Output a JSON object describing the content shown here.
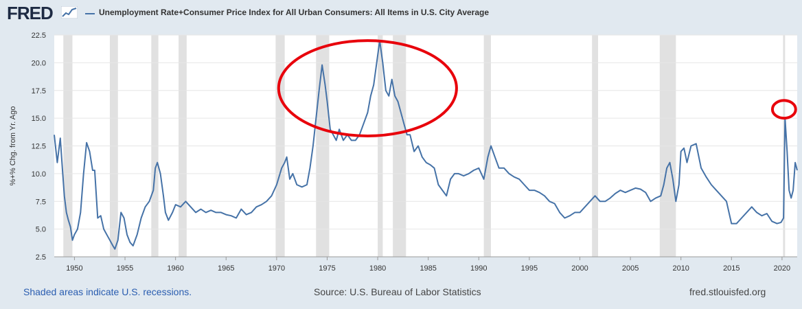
{
  "header": {
    "logo_text": "FRED",
    "legend_label": "Unemployment Rate+Consumer Price Index for All Urban Consumers: All Items in U.S. City Average"
  },
  "footer": {
    "recession_note": "Shaded areas indicate U.S. recessions.",
    "source": "Source: U.S. Bureau of Labor Statistics",
    "url": "fred.stlouisfed.org"
  },
  "colors": {
    "series": "#4572a7",
    "recession": "#e1e1e1",
    "annotation": "#e8000b",
    "background": "#e1e9f0",
    "plot_bg": "#ffffff",
    "grid": "#e6e6e6"
  },
  "chart_data": {
    "type": "line",
    "title": "",
    "xlabel": "",
    "ylabel": "%+% Chg. from Yr. Ago",
    "ylim": [
      2.5,
      22.5
    ],
    "xlim": [
      1948.0,
      2021.5
    ],
    "grid": true,
    "y_ticks": [
      2.5,
      5.0,
      7.5,
      10.0,
      12.5,
      15.0,
      17.5,
      20.0,
      22.5
    ],
    "y_tick_labels": [
      "2.5",
      "5.0",
      "7.5",
      "10.0",
      "12.5",
      "15.0",
      "17.5",
      "20.0",
      "22.5"
    ],
    "x_ticks": [
      1950,
      1955,
      1960,
      1965,
      1970,
      1975,
      1980,
      1985,
      1990,
      1995,
      2000,
      2005,
      2010,
      2015,
      2020
    ],
    "x_tick_labels": [
      "1950",
      "1955",
      "1960",
      "1965",
      "1970",
      "1975",
      "1980",
      "1985",
      "1990",
      "1995",
      "2000",
      "2005",
      "2010",
      "2015",
      "2020"
    ],
    "recessions": [
      [
        1948.9,
        1949.8
      ],
      [
        1953.5,
        1954.3
      ],
      [
        1957.6,
        1958.3
      ],
      [
        1960.3,
        1961.1
      ],
      [
        1969.9,
        1970.8
      ],
      [
        1973.9,
        1975.2
      ],
      [
        1980.0,
        1980.5
      ],
      [
        1981.5,
        1982.8
      ],
      [
        1990.5,
        1991.2
      ],
      [
        2001.2,
        2001.8
      ],
      [
        2007.9,
        2009.5
      ],
      [
        2020.1,
        2020.3
      ]
    ],
    "series": [
      {
        "x": [
          1948.0,
          1948.3,
          1948.6,
          1948.8,
          1949.0,
          1949.2,
          1949.4,
          1949.6,
          1949.8,
          1950.0,
          1950.3,
          1950.6,
          1950.9,
          1951.2,
          1951.5,
          1951.8,
          1952.0,
          1952.3,
          1952.6,
          1952.9,
          1953.2,
          1953.5,
          1953.8,
          1954.0,
          1954.3,
          1954.6,
          1954.9,
          1955.2,
          1955.5,
          1955.8,
          1956.2,
          1956.6,
          1957.0,
          1957.4,
          1957.8,
          1958.0,
          1958.2,
          1958.5,
          1958.8,
          1959.0,
          1959.3,
          1959.7,
          1960.0,
          1960.5,
          1961.0,
          1961.5,
          1962.0,
          1962.5,
          1963.0,
          1963.5,
          1964.0,
          1964.5,
          1965.0,
          1965.5,
          1966.0,
          1966.5,
          1967.0,
          1967.5,
          1968.0,
          1968.5,
          1969.0,
          1969.5,
          1970.0,
          1970.5,
          1970.8,
          1971.0,
          1971.3,
          1971.6,
          1972.0,
          1972.5,
          1973.0,
          1973.3,
          1973.6,
          1973.9,
          1974.2,
          1974.5,
          1974.8,
          1975.0,
          1975.3,
          1975.6,
          1975.9,
          1976.2,
          1976.6,
          1977.0,
          1977.4,
          1977.8,
          1978.2,
          1978.6,
          1979.0,
          1979.3,
          1979.6,
          1979.9,
          1980.2,
          1980.5,
          1980.8,
          1981.1,
          1981.4,
          1981.7,
          1982.0,
          1982.3,
          1982.6,
          1982.9,
          1983.2,
          1983.6,
          1984.0,
          1984.4,
          1984.8,
          1985.2,
          1985.6,
          1986.0,
          1986.4,
          1986.8,
          1987.2,
          1987.6,
          1988.0,
          1988.5,
          1989.0,
          1989.5,
          1990.0,
          1990.5,
          1990.9,
          1991.2,
          1991.6,
          1992.0,
          1992.5,
          1993.0,
          1993.5,
          1994.0,
          1994.5,
          1995.0,
          1995.5,
          1996.0,
          1996.5,
          1997.0,
          1997.5,
          1998.0,
          1998.5,
          1999.0,
          1999.5,
          2000.0,
          2000.5,
          2001.0,
          2001.5,
          2002.0,
          2002.5,
          2003.0,
          2003.5,
          2004.0,
          2004.5,
          2005.0,
          2005.5,
          2006.0,
          2006.5,
          2007.0,
          2007.5,
          2008.0,
          2008.3,
          2008.6,
          2008.9,
          2009.2,
          2009.5,
          2009.8,
          2010.0,
          2010.3,
          2010.6,
          2011.0,
          2011.5,
          2012.0,
          2012.5,
          2013.0,
          2013.5,
          2014.0,
          2014.5,
          2015.0,
          2015.5,
          2016.0,
          2016.5,
          2017.0,
          2017.5,
          2018.0,
          2018.5,
          2019.0,
          2019.5,
          2019.9,
          2020.15,
          2020.3,
          2020.5,
          2020.7,
          2020.9,
          2021.1,
          2021.3,
          2021.5
        ],
        "values": [
          13.5,
          11.0,
          13.2,
          10.5,
          8.0,
          6.5,
          5.8,
          5.2,
          4.0,
          4.5,
          5.0,
          6.5,
          10.0,
          12.8,
          12.0,
          10.3,
          10.3,
          6.0,
          6.2,
          5.0,
          4.5,
          4.0,
          3.5,
          3.2,
          4.0,
          6.5,
          6.0,
          4.5,
          3.8,
          3.5,
          4.5,
          6.0,
          7.0,
          7.5,
          8.5,
          10.5,
          11.0,
          10.0,
          8.0,
          6.5,
          5.8,
          6.5,
          7.2,
          7.0,
          7.5,
          7.0,
          6.5,
          6.8,
          6.5,
          6.7,
          6.5,
          6.5,
          6.3,
          6.2,
          6.0,
          6.8,
          6.3,
          6.5,
          7.0,
          7.2,
          7.5,
          8.0,
          9.0,
          10.5,
          11.0,
          11.5,
          9.5,
          10.0,
          9.0,
          8.8,
          9.0,
          10.5,
          12.5,
          15.0,
          17.5,
          19.8,
          18.0,
          16.5,
          14.0,
          13.5,
          13.0,
          14.0,
          13.0,
          13.5,
          13.0,
          13.0,
          13.5,
          14.5,
          15.5,
          17.0,
          18.0,
          20.0,
          22.0,
          20.0,
          17.5,
          17.0,
          18.5,
          17.0,
          16.5,
          15.5,
          14.5,
          13.5,
          13.5,
          12.0,
          12.5,
          11.5,
          11.0,
          10.8,
          10.5,
          9.0,
          8.5,
          8.0,
          9.5,
          10.0,
          10.0,
          9.8,
          10.0,
          10.3,
          10.5,
          9.5,
          11.5,
          12.5,
          11.5,
          10.5,
          10.5,
          10.0,
          9.7,
          9.5,
          9.0,
          8.5,
          8.5,
          8.3,
          8.0,
          7.5,
          7.3,
          6.5,
          6.0,
          6.2,
          6.5,
          6.5,
          7.0,
          7.5,
          8.0,
          7.5,
          7.5,
          7.8,
          8.2,
          8.5,
          8.3,
          8.5,
          8.7,
          8.6,
          8.3,
          7.5,
          7.8,
          8.0,
          9.0,
          10.5,
          11.0,
          9.5,
          7.5,
          9.0,
          12.0,
          12.3,
          11.0,
          12.5,
          12.7,
          10.5,
          9.7,
          9.0,
          8.5,
          8.0,
          7.5,
          5.5,
          5.5,
          6.0,
          6.5,
          7.0,
          6.5,
          6.2,
          6.4,
          5.7,
          5.5,
          5.6,
          6.0,
          15.0,
          12.0,
          8.5,
          7.8,
          8.5,
          11.0,
          10.3
        ]
      }
    ],
    "annotations": [
      {
        "shape": "ellipse",
        "cx": 1979.0,
        "cy": 17.7,
        "rx": 8.8,
        "ry": 4.3
      },
      {
        "shape": "ellipse",
        "cx": 2020.2,
        "cy": 15.8,
        "rx": 1.15,
        "ry": 0.8
      }
    ]
  }
}
